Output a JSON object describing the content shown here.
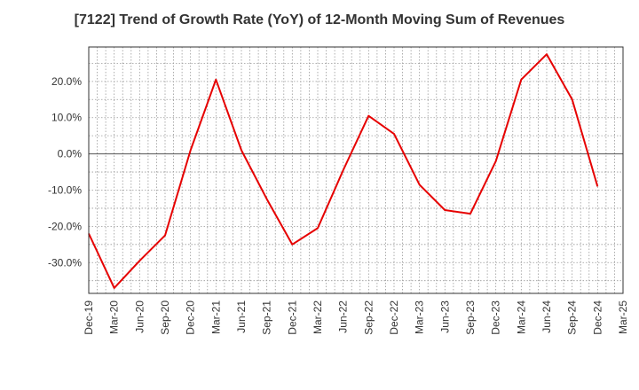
{
  "chart_data": {
    "type": "line",
    "title": "[7122]  Trend of Growth Rate (YoY) of 12-Month Moving Sum of Revenues",
    "xlabel": "",
    "ylabel": "",
    "x_ticks": [
      "Dec-19",
      "Mar-20",
      "Jun-20",
      "Sep-20",
      "Dec-20",
      "Mar-21",
      "Jun-21",
      "Sep-21",
      "Dec-21",
      "Mar-22",
      "Jun-22",
      "Sep-22",
      "Dec-22",
      "Mar-23",
      "Jun-23",
      "Sep-23",
      "Dec-23",
      "Mar-24",
      "Jun-24",
      "Sep-24",
      "Dec-24",
      "Mar-25"
    ],
    "y_ticks": [
      {
        "value": 20,
        "label": "20.0%"
      },
      {
        "value": 10,
        "label": "10.0%"
      },
      {
        "value": 0,
        "label": "0.0%"
      },
      {
        "value": -10,
        "label": "-10.0%"
      },
      {
        "value": -20,
        "label": "-20.0%"
      },
      {
        "value": -30,
        "label": "-30.0%"
      }
    ],
    "ylim": [
      -38.5,
      29.5
    ],
    "grid": true,
    "series": [
      {
        "color": "#e60000",
        "x": [
          "Dec-19",
          "Mar-20",
          "Jun-20",
          "Sep-20",
          "Dec-20",
          "Mar-21",
          "Jun-21",
          "Sep-21",
          "Dec-21",
          "Mar-22",
          "Jun-22",
          "Sep-22",
          "Dec-22",
          "Mar-23",
          "Jun-23",
          "Sep-23",
          "Dec-23",
          "Mar-24",
          "Jun-24",
          "Sep-24",
          "Dec-24"
        ],
        "values": [
          -22.0,
          -37.0,
          -29.5,
          -22.5,
          1.0,
          20.5,
          1.0,
          -12.5,
          -25.0,
          -20.5,
          -4.5,
          10.5,
          5.5,
          -8.5,
          -15.5,
          -16.5,
          -2.0,
          20.5,
          27.5,
          15.0,
          -9.0
        ]
      }
    ]
  }
}
